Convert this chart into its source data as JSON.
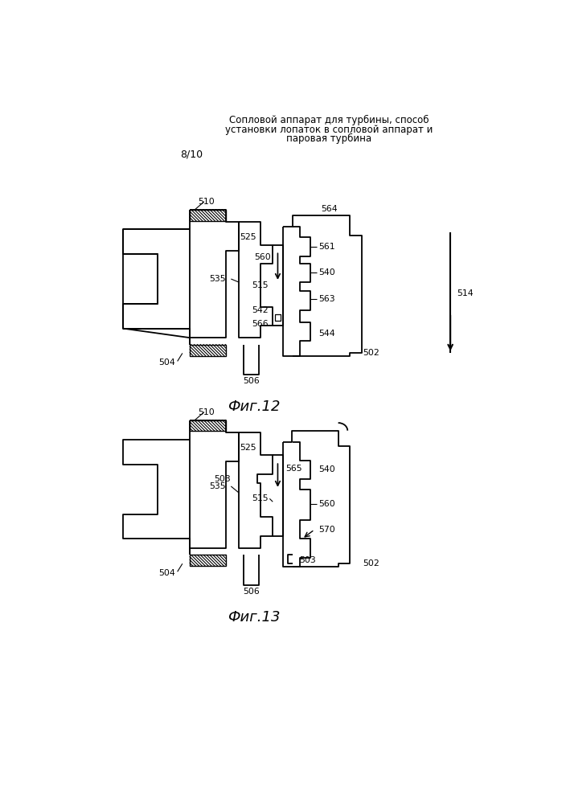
{
  "title_line1": "Сопловой аппарат для турбины, способ",
  "title_line2": "установки лопаток в сопловой аппарат и",
  "title_line3": "паровая турбина",
  "page_num": "8/10",
  "fig12_caption": "Фиг.12",
  "fig13_caption": "Фиг.13",
  "bg_color": "#ffffff",
  "line_color": "#000000"
}
